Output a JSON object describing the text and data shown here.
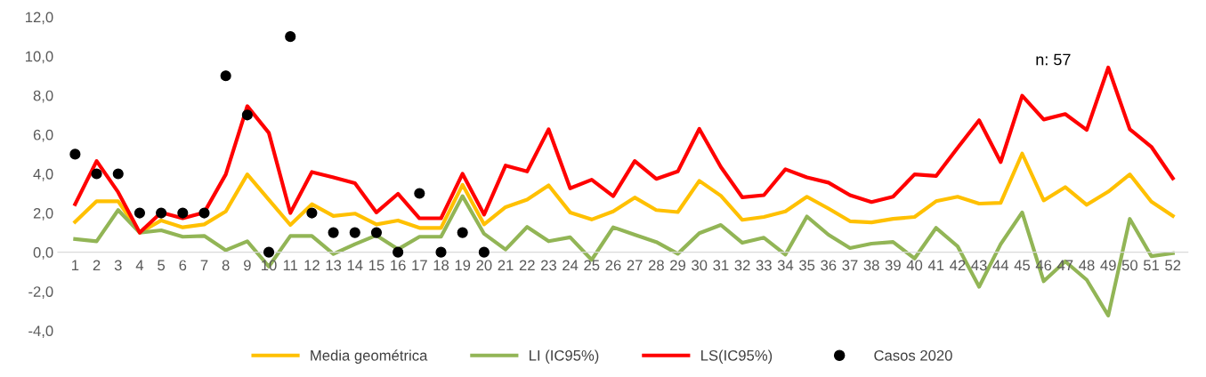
{
  "chart_data": {
    "type": "line",
    "categories": [
      "1",
      "2",
      "3",
      "4",
      "5",
      "6",
      "7",
      "8",
      "9",
      "10",
      "11",
      "12",
      "13",
      "14",
      "15",
      "16",
      "17",
      "18",
      "19",
      "20",
      "21",
      "22",
      "23",
      "24",
      "25",
      "26",
      "27",
      "28",
      "29",
      "30",
      "31",
      "32",
      "33",
      "34",
      "35",
      "36",
      "37",
      "38",
      "39",
      "40",
      "41",
      "42",
      "43",
      "44",
      "45",
      "46",
      "47",
      "48",
      "49",
      "50",
      "51",
      "52"
    ],
    "series": [
      {
        "name": "Media geométrica",
        "color": "#ffc000",
        "values": [
          1.55,
          2.6,
          2.6,
          1.0,
          1.62,
          1.27,
          1.42,
          2.08,
          3.97,
          2.68,
          1.39,
          2.45,
          1.85,
          1.97,
          1.42,
          1.62,
          1.24,
          1.24,
          3.44,
          1.42,
          2.3,
          2.68,
          3.41,
          2.03,
          1.67,
          2.08,
          2.79,
          2.15,
          2.05,
          3.64,
          2.88,
          1.65,
          1.8,
          2.08,
          2.83,
          2.23,
          1.58,
          1.52,
          1.7,
          1.8,
          2.6,
          2.83,
          2.48,
          2.52,
          5.03,
          2.64,
          3.32,
          2.42,
          3.09,
          3.97,
          2.58,
          1.85
        ]
      },
      {
        "name": "LI (IC95%)",
        "color": "#92b556",
        "values": [
          0.67,
          0.56,
          2.15,
          1.0,
          1.12,
          0.79,
          0.83,
          0.1,
          0.56,
          -0.73,
          0.83,
          0.83,
          -0.09,
          0.41,
          0.86,
          0.15,
          0.79,
          0.79,
          2.86,
          0.94,
          0.14,
          1.29,
          0.56,
          0.76,
          -0.39,
          1.27,
          0.89,
          0.52,
          -0.08,
          0.97,
          1.39,
          0.48,
          0.74,
          -0.12,
          1.82,
          0.89,
          0.21,
          0.44,
          0.52,
          -0.32,
          1.24,
          0.3,
          -1.76,
          0.41,
          2.03,
          -1.48,
          -0.47,
          -1.41,
          -3.23,
          1.7,
          -0.2,
          -0.05
        ]
      },
      {
        "name": "LS(IC95%)",
        "color": "#ff0000",
        "values": [
          2.45,
          4.65,
          3.06,
          1.0,
          2.03,
          1.73,
          2.03,
          3.97,
          7.45,
          6.09,
          2.0,
          4.09,
          3.82,
          3.52,
          2.03,
          2.98,
          1.73,
          1.73,
          4.0,
          1.92,
          4.42,
          4.12,
          6.27,
          3.26,
          3.7,
          2.86,
          4.65,
          3.74,
          4.12,
          6.29,
          4.35,
          2.8,
          2.91,
          4.23,
          3.82,
          3.55,
          2.91,
          2.56,
          2.83,
          3.97,
          3.89,
          5.33,
          6.73,
          4.6,
          7.98,
          6.77,
          7.05,
          6.24,
          9.42,
          6.27,
          5.38,
          3.77
        ]
      },
      {
        "name": "Casos 2020",
        "type": "scatter",
        "marker": "circle",
        "color": "#000000",
        "values": [
          5,
          4,
          4,
          2,
          2,
          2,
          2,
          9,
          7,
          0,
          11,
          2,
          1,
          1,
          1,
          0,
          3,
          0,
          1,
          0,
          null,
          null,
          null,
          null,
          null,
          null,
          null,
          null,
          null,
          null,
          null,
          null,
          null,
          null,
          null,
          null,
          null,
          null,
          null,
          null,
          null,
          null,
          null,
          null,
          null,
          null,
          null,
          null,
          null,
          null,
          null,
          null
        ]
      }
    ],
    "ylim": [
      -4,
      12
    ],
    "yticks": [
      {
        "value": -4,
        "label": "-4,0"
      },
      {
        "value": -2,
        "label": "-2,0"
      },
      {
        "value": 0,
        "label": "0,0"
      },
      {
        "value": 2,
        "label": "2,0"
      },
      {
        "value": 4,
        "label": "4,0"
      },
      {
        "value": 6,
        "label": "6,0"
      },
      {
        "value": 8,
        "label": "8,0"
      },
      {
        "value": 10,
        "label": "10,0"
      },
      {
        "value": 12,
        "label": "12,0"
      }
    ],
    "annotations": [
      "n: 57"
    ],
    "grid": false,
    "legend": "bottom"
  }
}
